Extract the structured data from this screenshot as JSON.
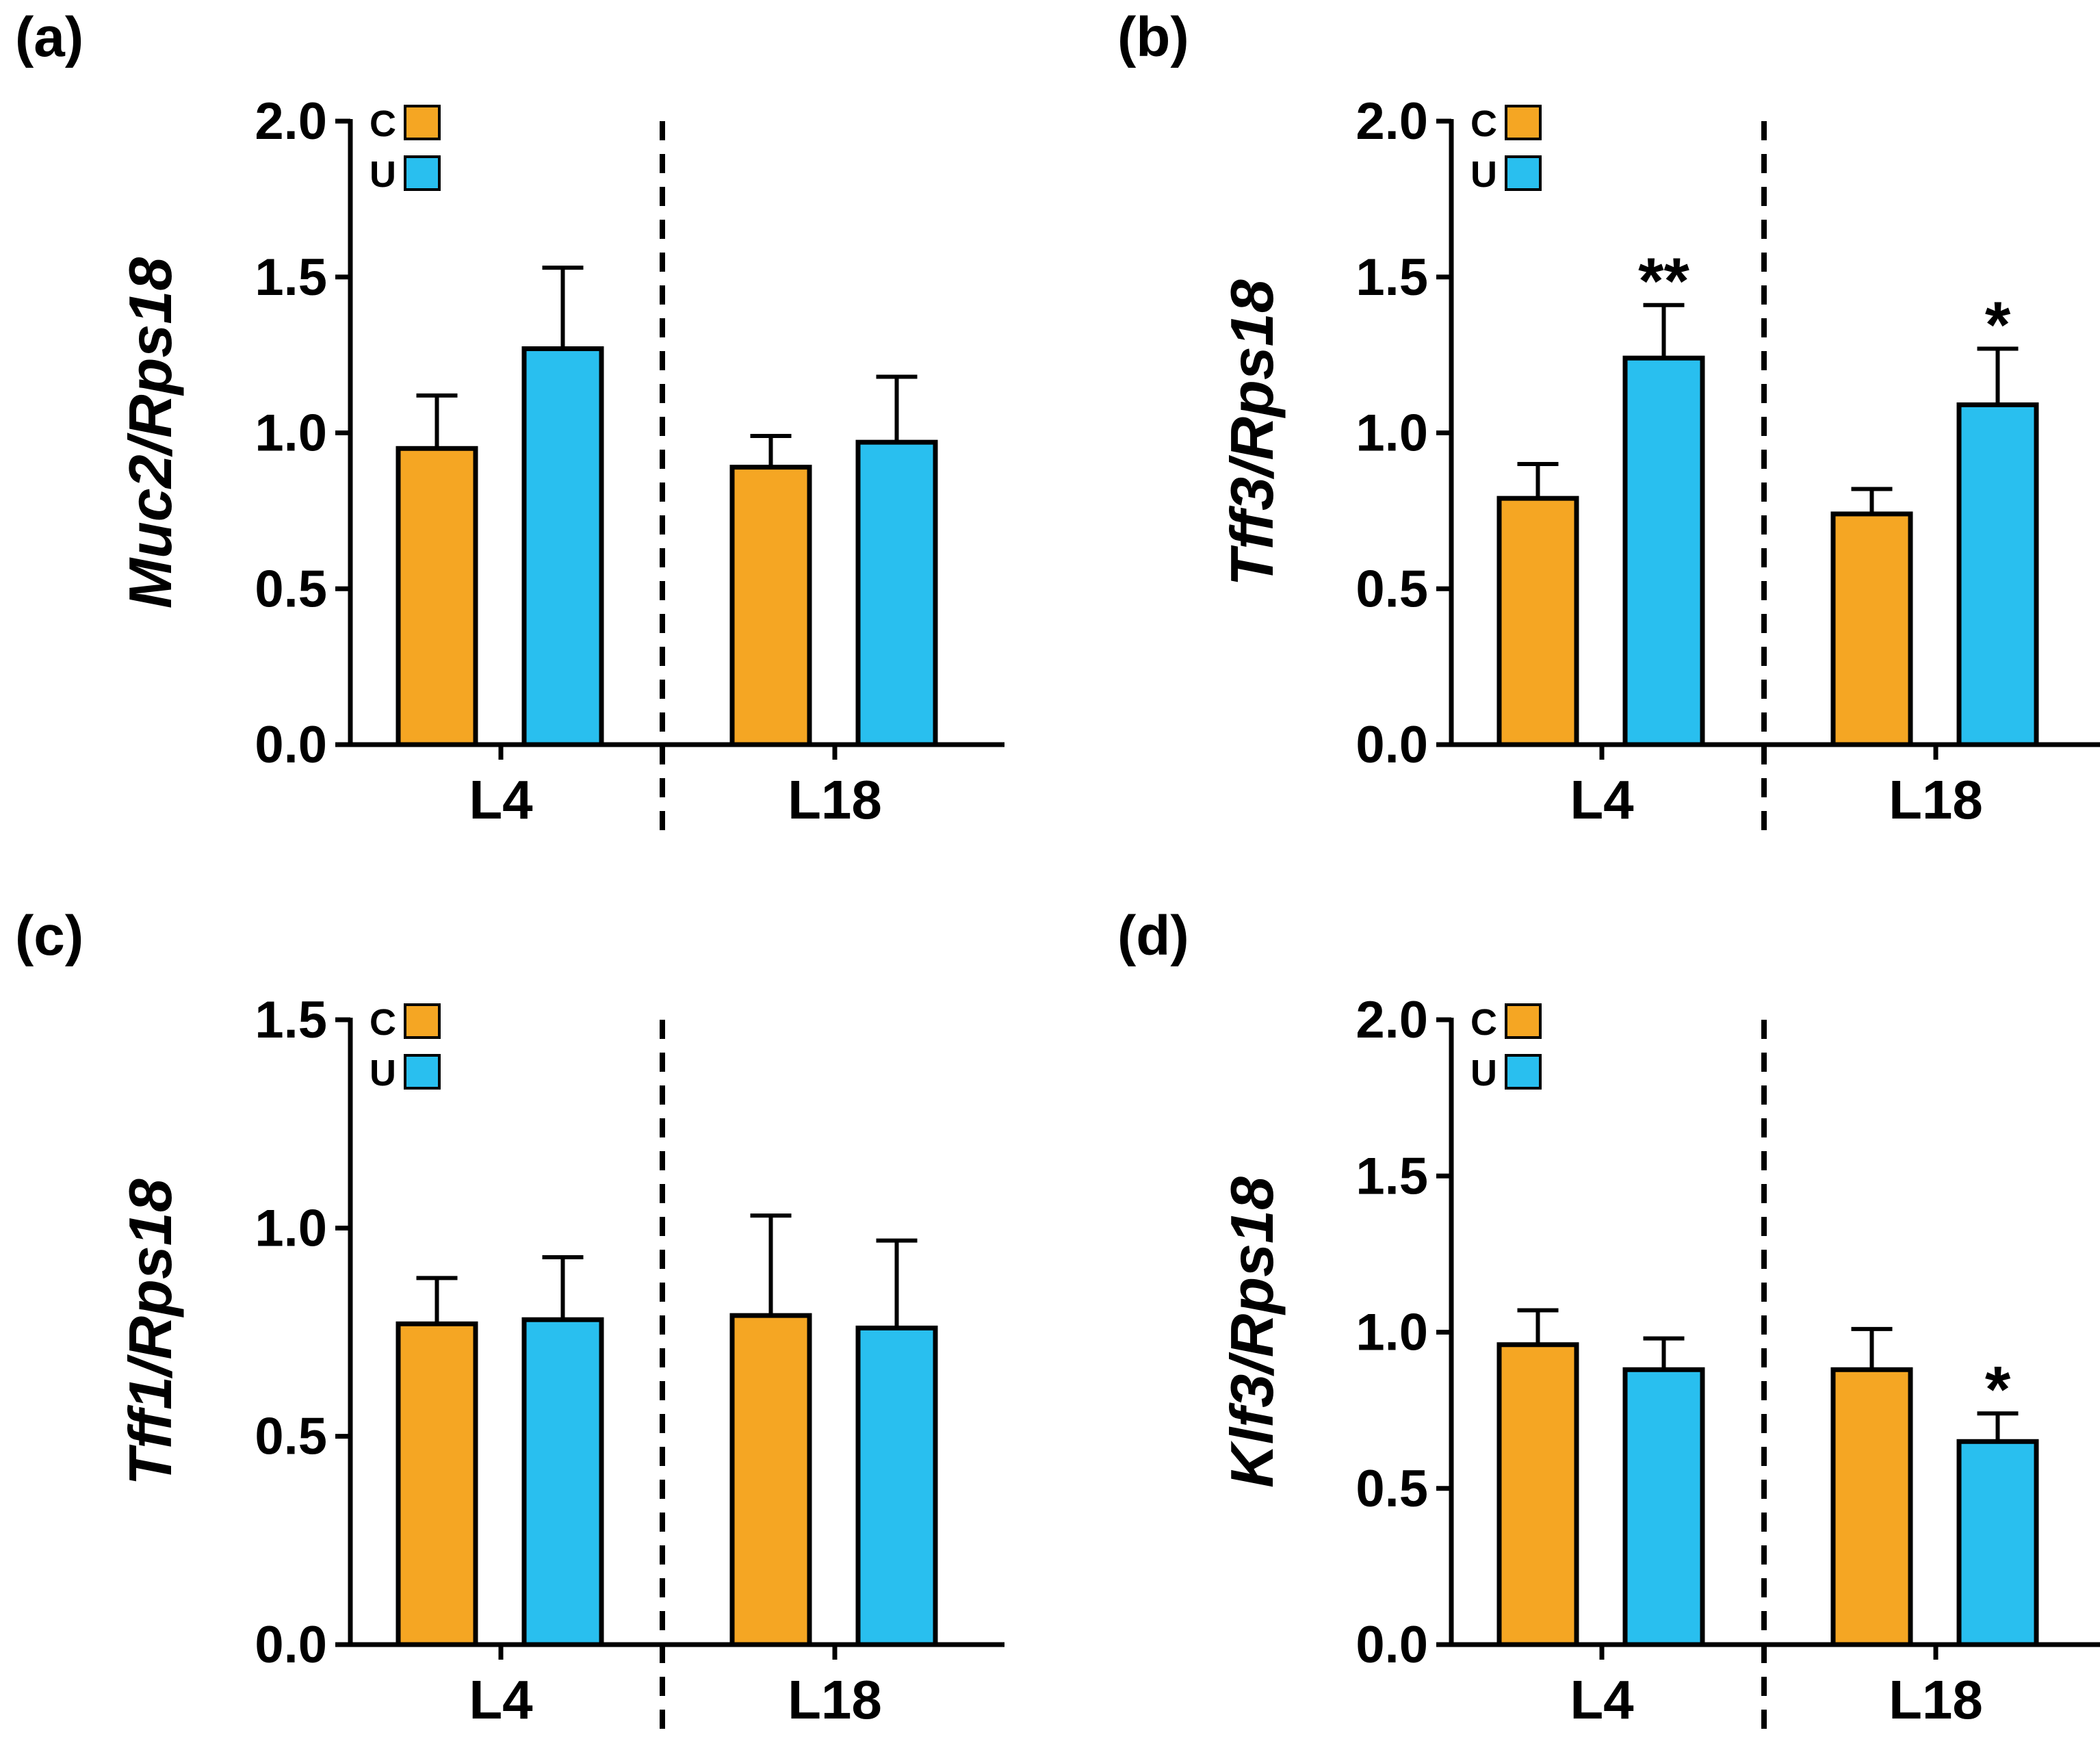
{
  "colors": {
    "C": "#F5A623",
    "U": "#29BFEF",
    "axis": "#000000"
  },
  "legend": {
    "c_label": "C",
    "u_label": "U"
  },
  "chart_data": [
    {
      "panel": "(a)",
      "type": "bar",
      "ylabel": "Muc2/Rps18",
      "ylim": [
        0,
        2.0
      ],
      "yticks": [
        "0.0",
        "0.5",
        "1.0",
        "1.5",
        "2.0"
      ],
      "categories": [
        "L4",
        "L18"
      ],
      "series": [
        {
          "name": "C",
          "values": [
            0.95,
            0.89
          ],
          "errors": [
            0.17,
            0.1
          ]
        },
        {
          "name": "U",
          "values": [
            1.27,
            0.97
          ],
          "errors": [
            0.26,
            0.21
          ]
        }
      ],
      "significance": []
    },
    {
      "panel": "(b)",
      "type": "bar",
      "ylabel": "Tff3/Rps18",
      "ylim": [
        0,
        2.0
      ],
      "yticks": [
        "0.0",
        "0.5",
        "1.0",
        "1.5",
        "2.0"
      ],
      "categories": [
        "L4",
        "L18"
      ],
      "series": [
        {
          "name": "C",
          "values": [
            0.79,
            0.74
          ],
          "errors": [
            0.11,
            0.08
          ]
        },
        {
          "name": "U",
          "values": [
            1.24,
            1.09
          ],
          "errors": [
            0.17,
            0.18
          ]
        }
      ],
      "significance": [
        {
          "category": "L4",
          "series": "U",
          "text": "**"
        },
        {
          "category": "L18",
          "series": "U",
          "text": "*"
        }
      ]
    },
    {
      "panel": "(c)",
      "type": "bar",
      "ylabel": "Tff1/Rps18",
      "ylim": [
        0,
        1.5
      ],
      "yticks": [
        "0.0",
        "0.5",
        "1.0",
        "1.5"
      ],
      "categories": [
        "L4",
        "L18"
      ],
      "series": [
        {
          "name": "C",
          "values": [
            0.77,
            0.79
          ],
          "errors": [
            0.11,
            0.24
          ]
        },
        {
          "name": "U",
          "values": [
            0.78,
            0.76
          ],
          "errors": [
            0.15,
            0.21
          ]
        }
      ],
      "significance": []
    },
    {
      "panel": "(d)",
      "type": "bar",
      "ylabel": "Klf3/Rps18",
      "ylim": [
        0,
        2.0
      ],
      "yticks": [
        "0.0",
        "0.5",
        "1.0",
        "1.5",
        "2.0"
      ],
      "categories": [
        "L4",
        "L18"
      ],
      "series": [
        {
          "name": "C",
          "values": [
            0.96,
            0.88
          ],
          "errors": [
            0.11,
            0.13
          ]
        },
        {
          "name": "U",
          "values": [
            0.88,
            0.65
          ],
          "errors": [
            0.1,
            0.09
          ]
        }
      ],
      "significance": [
        {
          "category": "L18",
          "series": "U",
          "text": "*"
        }
      ]
    }
  ]
}
